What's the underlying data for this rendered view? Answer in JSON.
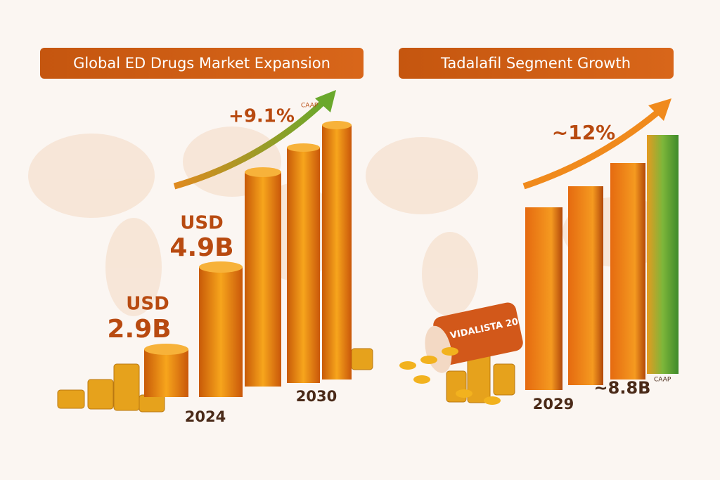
{
  "left_panel": {
    "title": "Global ED Drugs Market Expansion",
    "growth": "+9.1%",
    "growth_note": "CAAP",
    "label_high_unit": "USD",
    "label_high_value": "4.9B",
    "label_low_unit": "USD",
    "label_low_value": "2.9B",
    "year_start": "2024",
    "year_end": "2030"
  },
  "right_panel": {
    "title": "Tadalafil Segment Growth",
    "growth": "~12%",
    "year": "2029",
    "value": "~8.8B",
    "value_note": "CAAP",
    "pack_label": "VIDALISTA 20"
  }
}
